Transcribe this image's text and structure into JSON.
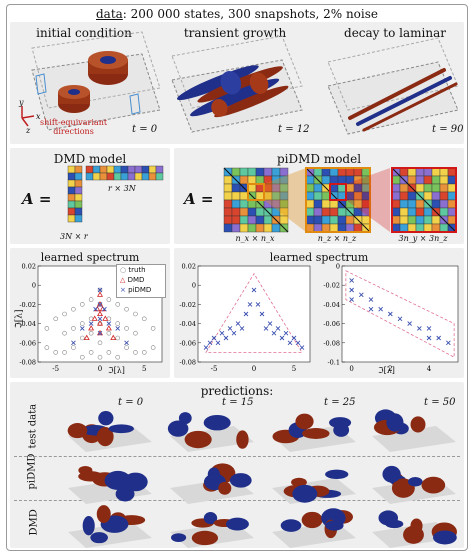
{
  "header": {
    "title_key": "data",
    "title_rest": ": 200 000 states, 300 snapshots, 2% noise"
  },
  "top_row": {
    "panels": [
      {
        "title": "initial condition",
        "time": "t = 0"
      },
      {
        "title": "transient growth",
        "time": "t = 12"
      },
      {
        "title": "decay to laminar",
        "time": "t = 90"
      }
    ],
    "axes": {
      "x": "x",
      "y": "y",
      "z": "z"
    },
    "annotation": "shift-equivariant\ndirections"
  },
  "dmd_model": {
    "title": "DMD model",
    "eq_label": "A =",
    "left_dim": "3N × r",
    "top_dim": "r × 3N"
  },
  "pidmd_model": {
    "title": "piDMD model",
    "eq_label": "A =",
    "dims": [
      "n_x × n_x",
      "n_z × n_z",
      "3n_y × 3n_z"
    ]
  },
  "spectrum_left": {
    "title": "learned spectrum",
    "ylabel": "ℑ[λ]",
    "xlabel": "ℑ[λ]",
    "legend": [
      "truth",
      "DMD",
      "piDMD"
    ]
  },
  "spectrum_right": {
    "title": "learned spectrum",
    "xlabel": "ℑ[λ]"
  },
  "predictions": {
    "title": "predictions:",
    "times": [
      "t = 0",
      "t = 15",
      "t = 25",
      "t = 50"
    ],
    "rows": [
      "test data",
      "piDMD",
      "DMD"
    ]
  },
  "colors": {
    "panel_bg": "#efefef",
    "red_surface": "#8b2a12",
    "blue_surface": "#1f2f8a",
    "dmd_marker": "#d02020",
    "pidmd_marker": "#3a4fb0",
    "truth_marker": "#888888",
    "highlight_orange": "#e08a10",
    "highlight_red": "#d01818",
    "dashed_pink": "#e07090"
  },
  "chart_data": [
    {
      "type": "scatter",
      "title": "learned spectrum",
      "xlabel": "ℑ[λ]",
      "ylabel": "ℑ[λ]",
      "xlim": [
        -7,
        7
      ],
      "ylim": [
        -0.08,
        0.02
      ],
      "xticks": [
        -5,
        0,
        5
      ],
      "yticks": [
        0.02,
        0,
        -0.02,
        -0.04,
        -0.06,
        -0.08
      ],
      "legend_position": "top-right",
      "series": [
        {
          "name": "truth",
          "x": [
            -6,
            -6,
            -5,
            -5,
            -4,
            -4,
            -4,
            -3,
            -3,
            -3,
            -2,
            -2,
            -2,
            -2,
            -1,
            -1,
            -1,
            -1,
            0,
            0,
            0,
            0,
            0,
            1,
            1,
            1,
            1,
            2,
            2,
            2,
            2,
            3,
            3,
            3,
            4,
            4,
            4,
            5,
            5,
            6,
            6
          ],
          "y": [
            -0.045,
            -0.065,
            -0.035,
            -0.07,
            -0.03,
            -0.05,
            -0.07,
            -0.025,
            -0.045,
            -0.065,
            -0.02,
            -0.04,
            -0.055,
            -0.075,
            -0.015,
            -0.035,
            -0.05,
            -0.07,
            -0.005,
            -0.02,
            -0.04,
            -0.06,
            -0.075,
            -0.015,
            -0.035,
            -0.05,
            -0.07,
            -0.02,
            -0.04,
            -0.055,
            -0.075,
            -0.025,
            -0.045,
            -0.065,
            -0.03,
            -0.05,
            -0.07,
            -0.035,
            -0.07,
            -0.045,
            -0.065
          ]
        },
        {
          "name": "DMD",
          "x": [
            0,
            0,
            0,
            0,
            0,
            -0.3,
            0.3,
            -0.6,
            0.6,
            -1,
            1,
            -1.5,
            1.5
          ],
          "y": [
            -0.01,
            -0.02,
            -0.03,
            -0.04,
            -0.05,
            -0.025,
            -0.025,
            -0.035,
            -0.035,
            -0.045,
            -0.045,
            -0.055,
            -0.055
          ]
        },
        {
          "name": "piDMD",
          "x": [
            0,
            0,
            0,
            0,
            -0.5,
            0.5,
            -1,
            1,
            -2,
            2,
            -3,
            3
          ],
          "y": [
            -0.005,
            -0.02,
            -0.035,
            -0.05,
            -0.025,
            -0.025,
            -0.04,
            -0.04,
            -0.045,
            -0.045,
            -0.06,
            -0.06
          ]
        }
      ]
    },
    {
      "type": "scatter",
      "title": "learned spectrum",
      "xlabel": "",
      "ylabel": "",
      "xlim": [
        -7,
        7
      ],
      "ylim": [
        -0.08,
        0.02
      ],
      "xticks": [
        -5,
        0,
        5
      ],
      "yticks": [
        0.02,
        0,
        -0.02,
        -0.04,
        -0.06,
        -0.08
      ],
      "series": [
        {
          "name": "piDMD",
          "x": [
            -6,
            -5.5,
            -5,
            -4.5,
            -4,
            -3.5,
            -3,
            -2.5,
            -2,
            -1.5,
            -1,
            -0.5,
            0,
            0.5,
            1,
            1.5,
            2,
            2.5,
            3,
            3.5,
            4,
            4.5,
            5,
            5.5,
            6
          ],
          "y": [
            -0.065,
            -0.06,
            -0.055,
            -0.06,
            -0.05,
            -0.055,
            -0.045,
            -0.05,
            -0.04,
            -0.045,
            -0.03,
            -0.02,
            -0.005,
            -0.02,
            -0.03,
            -0.045,
            -0.04,
            -0.05,
            -0.045,
            -0.055,
            -0.05,
            -0.06,
            -0.055,
            -0.06,
            -0.065
          ]
        }
      ]
    },
    {
      "type": "scatter",
      "title": "",
      "xlabel": "ℑ[λ]",
      "ylabel": "",
      "xlim": [
        -0.5,
        5.5
      ],
      "ylim": [
        -0.1,
        0
      ],
      "xticks": [
        0,
        2,
        4
      ],
      "yticks": [
        0,
        -0.02,
        -0.04,
        -0.06,
        -0.08,
        -0.1
      ],
      "series": [
        {
          "name": "piDMD",
          "x": [
            0,
            0,
            0,
            0.5,
            1,
            1,
            1.5,
            2,
            2.5,
            3,
            3.5,
            4,
            4,
            4.5,
            5
          ],
          "y": [
            -0.015,
            -0.025,
            -0.035,
            -0.03,
            -0.035,
            -0.045,
            -0.045,
            -0.05,
            -0.055,
            -0.06,
            -0.065,
            -0.065,
            -0.075,
            -0.075,
            -0.08
          ]
        }
      ]
    }
  ]
}
